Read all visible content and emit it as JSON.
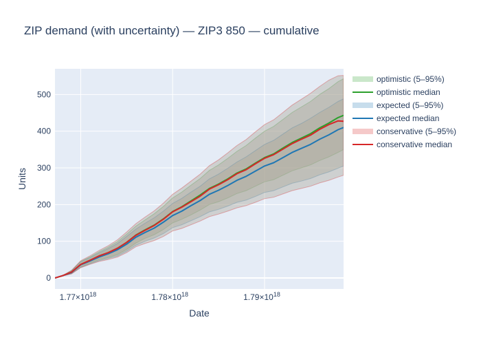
{
  "chart_data": {
    "type": "area",
    "title": "ZIP demand (with uncertainty) — ZIP3 850 — cumulative",
    "xlabel": "Date",
    "ylabel": "Units",
    "xlim": [
      1.7672e+18,
      1.7986e+18
    ],
    "ylim": [
      -30,
      570
    ],
    "x_ticks": [
      {
        "value": 1.77e+18,
        "base": "1.77×10",
        "exp": "18"
      },
      {
        "value": 1.78e+18,
        "base": "1.78×10",
        "exp": "18"
      },
      {
        "value": 1.79e+18,
        "base": "1.79×10",
        "exp": "18"
      }
    ],
    "y_ticks": [
      0,
      100,
      200,
      300,
      400,
      500
    ],
    "grid": true,
    "legend_position": "right",
    "x": [
      1.7672e+18,
      1.768e+18,
      1.769e+18,
      1.77e+18,
      1.771e+18,
      1.772e+18,
      1.773e+18,
      1.774e+18,
      1.775e+18,
      1.776e+18,
      1.777e+18,
      1.778e+18,
      1.779e+18,
      1.78e+18,
      1.781e+18,
      1.782e+18,
      1.783e+18,
      1.784e+18,
      1.785e+18,
      1.786e+18,
      1.787e+18,
      1.788e+18,
      1.789e+18,
      1.79e+18,
      1.791e+18,
      1.792e+18,
      1.793e+18,
      1.794e+18,
      1.795e+18,
      1.796e+18,
      1.797e+18,
      1.798e+18,
      1.7986e+18
    ],
    "series": [
      {
        "name": "optimistic (5–95%)",
        "kind": "band",
        "color": "#2ca02c",
        "lower": [
          0,
          5,
          12,
          30,
          40,
          50,
          56,
          64,
          78,
          95,
          108,
          118,
          132,
          150,
          160,
          172,
          185,
          200,
          208,
          218,
          230,
          238,
          250,
          262,
          268,
          280,
          292,
          300,
          308,
          320,
          330,
          342,
          350
        ],
        "upper": [
          0,
          6,
          20,
          45,
          57,
          71,
          84,
          99,
          119,
          141,
          158,
          175,
          195,
          218,
          234,
          253,
          271,
          293,
          308,
          326,
          345,
          361,
          381,
          400,
          413,
          432,
          451,
          466,
          481,
          500,
          516,
          535,
          543
        ]
      },
      {
        "name": "optimistic median",
        "kind": "line",
        "color": "#2ca02c",
        "values": [
          0,
          6,
          16,
          37,
          48,
          60,
          69,
          81,
          97,
          117,
          131,
          144,
          161,
          181,
          194,
          210,
          226,
          244,
          256,
          270,
          286,
          297,
          313,
          328,
          338,
          354,
          369,
          381,
          393,
          409,
          422,
          437,
          443
        ]
      },
      {
        "name": "expected (5–95%)",
        "kind": "band",
        "color": "#1f77b4",
        "lower": [
          0,
          5,
          12,
          29,
          38,
          47,
          53,
          60,
          73,
          89,
          100,
          109,
          121,
          137,
          145,
          156,
          167,
          180,
          187,
          196,
          206,
          212,
          222,
          233,
          238,
          248,
          258,
          264,
          271,
          281,
          289,
          299,
          305
        ],
        "upper": [
          0,
          6,
          19,
          44,
          55,
          68,
          80,
          94,
          113,
          133,
          149,
          164,
          182,
          203,
          217,
          234,
          250,
          270,
          283,
          299,
          316,
          330,
          347,
          364,
          375,
          392,
          409,
          421,
          435,
          451,
          465,
          481,
          488
        ]
      },
      {
        "name": "expected median",
        "kind": "line",
        "color": "#1f77b4",
        "values": [
          0,
          6,
          15,
          36,
          46,
          57,
          66,
          77,
          92,
          111,
          124,
          136,
          152,
          170,
          182,
          197,
          211,
          228,
          239,
          252,
          266,
          277,
          291,
          305,
          314,
          328,
          342,
          353,
          364,
          378,
          390,
          404,
          410
        ]
      },
      {
        "name": "conservative (5–95%)",
        "kind": "band",
        "color": "#d62728",
        "lower": [
          0,
          5,
          11,
          28,
          37,
          45,
          50,
          57,
          69,
          85,
          94,
          102,
          113,
          128,
          135,
          145,
          155,
          167,
          174,
          182,
          191,
          197,
          206,
          216,
          220,
          229,
          238,
          244,
          250,
          259,
          266,
          275,
          280
        ],
        "upper": [
          0,
          6,
          21,
          47,
          60,
          75,
          88,
          104,
          125,
          148,
          166,
          183,
          204,
          228,
          245,
          264,
          283,
          306,
          322,
          341,
          361,
          377,
          398,
          418,
          431,
          451,
          471,
          487,
          503,
          522,
          539,
          551,
          552
        ]
      },
      {
        "name": "conservative median",
        "kind": "line",
        "color": "#d62728",
        "values": [
          0,
          6,
          16,
          37,
          48,
          60,
          69,
          81,
          97,
          116,
          130,
          143,
          160,
          180,
          193,
          208,
          223,
          242,
          254,
          268,
          284,
          295,
          311,
          326,
          336,
          351,
          366,
          378,
          389,
          405,
          418,
          428,
          427
        ]
      }
    ]
  },
  "colors": {
    "plot_bg": "#e5ecf6",
    "grid": "#ffffff",
    "text": "#2a3f5f",
    "band_fill": "#a9a294"
  }
}
